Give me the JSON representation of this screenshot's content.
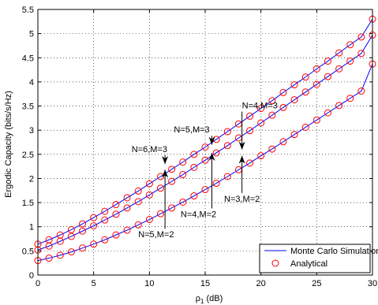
{
  "chart_data": {
    "type": "line",
    "xlabel": "ρ",
    "xlabel_sub": "1",
    "xlabel_unit": " (dB)",
    "ylabel": "Ergodic Capacity (bits/s/Hz)",
    "xlim": [
      0,
      30
    ],
    "ylim": [
      0,
      5.5
    ],
    "x_ticks": [
      0,
      5,
      10,
      15,
      20,
      25,
      30
    ],
    "y_ticks": [
      0,
      0.5,
      1,
      1.5,
      2,
      2.5,
      3,
      3.5,
      4,
      4.5,
      5,
      5.5
    ],
    "grid": true,
    "grid_style": "dotted",
    "x": [
      0,
      1,
      2,
      3,
      4,
      5,
      6,
      7,
      8,
      9,
      10,
      11,
      12,
      13,
      14,
      15,
      16,
      17,
      18,
      19,
      20,
      21,
      22,
      23,
      24,
      25,
      26,
      27,
      28,
      29,
      30
    ],
    "curves": [
      {
        "y": [
          0.64,
          0.73,
          0.83,
          0.94,
          1.06,
          1.19,
          1.32,
          1.46,
          1.6,
          1.74,
          1.89,
          2.04,
          2.19,
          2.34,
          2.5,
          2.65,
          2.81,
          2.97,
          3.13,
          3.29,
          3.45,
          3.61,
          3.78,
          3.94,
          4.1,
          4.27,
          4.43,
          4.6,
          4.77,
          4.93,
          5.3
        ]
      },
      {
        "y": [
          0.52,
          0.6,
          0.7,
          0.8,
          0.91,
          1.02,
          1.14,
          1.26,
          1.39,
          1.52,
          1.66,
          1.8,
          1.94,
          2.08,
          2.23,
          2.38,
          2.53,
          2.68,
          2.84,
          2.99,
          3.15,
          3.31,
          3.47,
          3.63,
          3.79,
          3.95,
          4.11,
          4.27,
          4.43,
          4.59,
          4.97
        ]
      },
      {
        "y": [
          0.3,
          0.35,
          0.41,
          0.48,
          0.56,
          0.64,
          0.73,
          0.83,
          0.93,
          1.04,
          1.15,
          1.27,
          1.39,
          1.51,
          1.64,
          1.77,
          1.9,
          2.04,
          2.18,
          2.32,
          2.47,
          2.61,
          2.76,
          2.91,
          3.06,
          3.21,
          3.36,
          3.51,
          3.66,
          3.81,
          4.37
        ]
      }
    ],
    "legend": [
      {
        "label": "Monte Carlo Simulation",
        "style": "line",
        "color": "#0000ff"
      },
      {
        "label": "Analytical",
        "style": "circle",
        "color": "#ff0000"
      }
    ],
    "legend_position": "bottom-right",
    "annotations": [
      {
        "text": "N=4,M=3",
        "tx": 18.3,
        "ty": 3.45,
        "ax": 18.3,
        "ay": 2.6,
        "dir": "down"
      },
      {
        "text": "N=5,M=3",
        "tx": 12.2,
        "ty": 2.95,
        "ax": 15.6,
        "ay": 2.7,
        "dir": "down"
      },
      {
        "text": "N=6,M=3",
        "tx": 8.4,
        "ty": 2.55,
        "ax": 11.4,
        "ay": 2.3,
        "dir": "down"
      },
      {
        "text": "N=4,M=2",
        "tx": 12.8,
        "ty": 1.2,
        "ax": 15.6,
        "ay": 2.53,
        "dir": "up"
      },
      {
        "text": "N=3,M=2",
        "tx": 16.7,
        "ty": 1.52,
        "ax": 18.3,
        "ay": 2.47,
        "dir": "up"
      },
      {
        "text": "N=5,M=2",
        "tx": 9.0,
        "ty": 0.78,
        "ax": 11.4,
        "ay": 2.18,
        "dir": "up"
      }
    ]
  }
}
